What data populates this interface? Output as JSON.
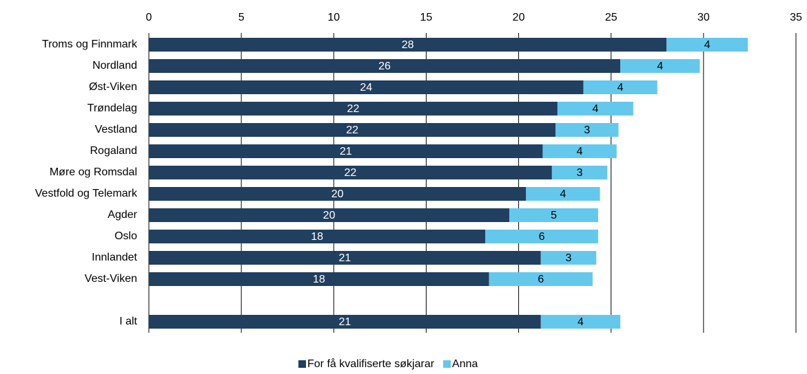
{
  "chart_data": {
    "type": "stacked-bar-horizontal",
    "categories": [
      "Troms og Finnmark",
      "Nordland",
      "Øst-Viken",
      "Trøndelag",
      "Vestland",
      "Rogaland",
      "Møre og Romsdal",
      "Vestfold og Telemark",
      "Agder",
      "Oslo",
      "Innlandet",
      "Vest-Viken",
      null,
      "I alt"
    ],
    "series": [
      {
        "name": "For få kvalifiserte søkjarar",
        "color": "#213f5f",
        "values": [
          28.0,
          25.5,
          23.5,
          22.1,
          22.0,
          21.3,
          21.8,
          20.4,
          19.5,
          18.2,
          21.2,
          18.4,
          null,
          21.2
        ],
        "value_labels": [
          "28",
          "26",
          "24",
          "22",
          "22",
          "21",
          "22",
          "20",
          "20",
          "18",
          "21",
          "18",
          null,
          "21"
        ]
      },
      {
        "name": "Anna",
        "color": "#64c8ec",
        "values": [
          4.4,
          4.3,
          4.0,
          4.1,
          3.4,
          4.0,
          3.0,
          4.0,
          4.8,
          6.1,
          3.0,
          5.6,
          null,
          4.3
        ],
        "value_labels": [
          "4",
          "4",
          "4",
          "4",
          "3",
          "4",
          "3",
          "4",
          "5",
          "6",
          "3",
          "6",
          null,
          "4"
        ]
      }
    ],
    "xlim": [
      0,
      35
    ],
    "xticks": [
      0,
      5,
      10,
      15,
      20,
      25,
      30,
      35
    ],
    "grid": true,
    "legend": "bottom"
  }
}
